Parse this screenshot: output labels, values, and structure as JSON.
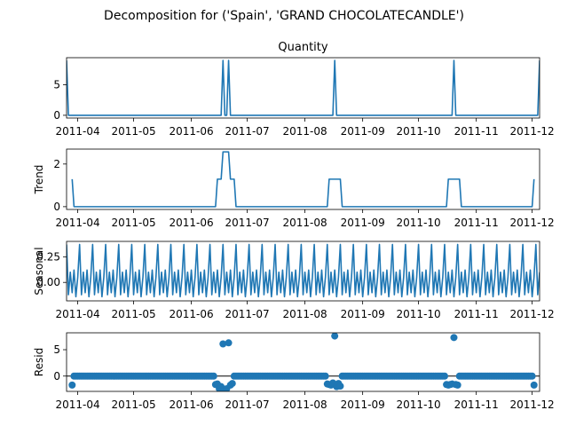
{
  "figure": {
    "suptitle": "Decomposition for ('Spain', 'GRAND CHOCOLATECANDLE')"
  },
  "x_ticks": [
    "2011-04",
    "2011-05",
    "2011-06",
    "2011-07",
    "2011-08",
    "2011-09",
    "2011-10",
    "2011-11",
    "2011-12"
  ],
  "chart_data": [
    {
      "type": "line",
      "title": "Quantity",
      "ylabel": "",
      "x_range": [
        "2011-03-26",
        "2011-12-05"
      ],
      "ylim": [
        -0.45,
        9.45
      ],
      "yticks": [
        0,
        5
      ],
      "color": "#1f77b4",
      "points": [
        [
          "2011-03-26",
          9
        ],
        [
          "2011-03-27",
          0
        ],
        [
          "2011-06-17",
          0
        ],
        [
          "2011-06-18",
          9
        ],
        [
          "2011-06-19",
          0
        ],
        [
          "2011-06-20",
          0
        ],
        [
          "2011-06-21",
          9
        ],
        [
          "2011-06-22",
          0
        ],
        [
          "2011-08-16",
          0
        ],
        [
          "2011-08-17",
          9
        ],
        [
          "2011-08-18",
          0
        ],
        [
          "2011-10-19",
          0
        ],
        [
          "2011-10-20",
          9
        ],
        [
          "2011-10-21",
          0
        ],
        [
          "2011-12-04",
          0
        ],
        [
          "2011-12-05",
          9
        ]
      ]
    },
    {
      "type": "line",
      "title": "",
      "ylabel": "Trend",
      "x_range": [
        "2011-03-26",
        "2011-12-05"
      ],
      "ylim": [
        -0.13,
        2.7
      ],
      "yticks": [
        0,
        2
      ],
      "color": "#1f77b4",
      "points": [
        [
          "2011-03-29",
          1.29
        ],
        [
          "2011-03-30",
          0
        ],
        [
          "2011-06-14",
          0
        ],
        [
          "2011-06-15",
          1.29
        ],
        [
          "2011-06-17",
          1.29
        ],
        [
          "2011-06-18",
          2.57
        ],
        [
          "2011-06-21",
          2.57
        ],
        [
          "2011-06-22",
          1.29
        ],
        [
          "2011-06-24",
          1.29
        ],
        [
          "2011-06-25",
          0
        ],
        [
          "2011-08-13",
          0
        ],
        [
          "2011-08-14",
          1.29
        ],
        [
          "2011-08-20",
          1.29
        ],
        [
          "2011-08-21",
          0
        ],
        [
          "2011-10-16",
          0
        ],
        [
          "2011-10-17",
          1.29
        ],
        [
          "2011-10-23",
          1.29
        ],
        [
          "2011-10-24",
          0
        ],
        [
          "2011-12-01",
          0
        ],
        [
          "2011-12-02",
          1.29
        ]
      ]
    },
    {
      "type": "line",
      "title": "",
      "ylabel": "Seasonal",
      "x_range": [
        "2011-03-26",
        "2011-12-05"
      ],
      "ylim": [
        -0.18,
        0.4
      ],
      "yticks": [
        -0.0,
        0.25
      ],
      "ytick_labels": [
        "0.00",
        "0.25"
      ],
      "color": "#1f77b4",
      "period": 7,
      "start": "2011-03-26",
      "pattern": [
        0.37,
        -0.12,
        0.1,
        -0.1,
        0.12,
        -0.14,
        0.05
      ]
    },
    {
      "type": "scatter",
      "title": "",
      "ylabel": "Resid",
      "x_range": [
        "2011-03-26",
        "2011-12-05"
      ],
      "ylim": [
        -2.9,
        8.2
      ],
      "yticks": [
        0,
        5
      ],
      "color": "#1f77b4",
      "baseline": 0,
      "base_range": [
        "2011-03-29",
        "2011-12-02"
      ],
      "base_value": 0.0,
      "points": [
        [
          "2011-03-29",
          -1.7
        ],
        [
          "2011-06-14",
          -1.6
        ],
        [
          "2011-06-15",
          -1.5
        ],
        [
          "2011-06-16",
          -2.4
        ],
        [
          "2011-06-17",
          -2.0
        ],
        [
          "2011-06-18",
          6.1
        ],
        [
          "2011-06-19",
          -2.5
        ],
        [
          "2011-06-20",
          -2.4
        ],
        [
          "2011-06-21",
          6.3
        ],
        [
          "2011-06-22",
          -1.7
        ],
        [
          "2011-06-23",
          -1.4
        ],
        [
          "2011-08-13",
          -1.5
        ],
        [
          "2011-08-14",
          -1.6
        ],
        [
          "2011-08-15",
          -1.7
        ],
        [
          "2011-08-16",
          -1.3
        ],
        [
          "2011-08-17",
          7.6
        ],
        [
          "2011-08-18",
          -2.0
        ],
        [
          "2011-08-19",
          -1.4
        ],
        [
          "2011-08-20",
          -1.9
        ],
        [
          "2011-10-16",
          -1.6
        ],
        [
          "2011-10-17",
          -1.7
        ],
        [
          "2011-10-18",
          -1.6
        ],
        [
          "2011-10-19",
          -1.5
        ],
        [
          "2011-10-20",
          7.3
        ],
        [
          "2011-10-21",
          -1.6
        ],
        [
          "2011-10-22",
          -1.7
        ],
        [
          "2011-12-02",
          -1.7
        ]
      ]
    }
  ]
}
